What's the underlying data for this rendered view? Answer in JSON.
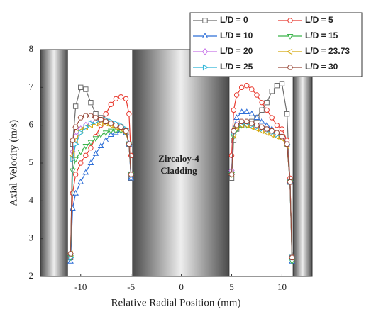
{
  "chart_data": {
    "type": "line",
    "xlabel": "Relative Radial Position (mm)",
    "ylabel": "Axial Velocity (m/s)",
    "annotation": [
      "Zircaloy-4",
      "Cladding"
    ],
    "xlim": [
      -14,
      13
    ],
    "ylim": [
      2,
      8
    ],
    "xticks": [
      -10,
      -5,
      0,
      5,
      10
    ],
    "yticks": [
      2,
      3,
      4,
      5,
      6,
      7,
      8
    ],
    "regions": [
      [
        -14,
        -11.3
      ],
      [
        -4.85,
        4.75
      ],
      [
        11.1,
        13
      ]
    ],
    "x": [
      -11,
      -10.8,
      -10.5,
      -10,
      -9.5,
      -9,
      -8.5,
      -8,
      -7.5,
      -7,
      -6.5,
      -6,
      -5.5,
      -5.2,
      -5,
      null,
      5,
      5.2,
      5.5,
      6,
      6.5,
      7,
      7.5,
      8,
      8.5,
      9,
      9.5,
      10,
      10.5,
      10.8,
      11
    ],
    "series": [
      {
        "name": "L/D = 0",
        "color": "#6e6e6e",
        "marker": "square",
        "values": [
          2.5,
          5.5,
          6.5,
          7.0,
          6.95,
          6.6,
          6.3,
          6.2,
          6.1,
          6.05,
          6.0,
          5.95,
          5.8,
          5.5,
          4.6,
          null,
          4.6,
          5.6,
          5.9,
          6.0,
          6.05,
          6.1,
          6.2,
          6.4,
          6.6,
          6.9,
          7.05,
          7.1,
          6.3,
          4.5,
          2.5
        ]
      },
      {
        "name": "L/D = 5",
        "color": "#e8382d",
        "marker": "circle",
        "values": [
          2.5,
          4.2,
          4.7,
          5.0,
          5.2,
          5.4,
          5.7,
          6.0,
          6.3,
          6.55,
          6.7,
          6.75,
          6.7,
          6.3,
          5.2,
          null,
          5.2,
          6.4,
          6.8,
          7.0,
          7.05,
          6.95,
          6.8,
          6.6,
          6.4,
          6.2,
          6.0,
          5.9,
          5.6,
          4.6,
          2.5
        ]
      },
      {
        "name": "L/D = 10",
        "color": "#2e6fd8",
        "marker": "triangle-up",
        "values": [
          2.4,
          3.8,
          4.2,
          4.5,
          4.75,
          5.0,
          5.25,
          5.45,
          5.6,
          5.75,
          5.8,
          5.85,
          5.8,
          5.5,
          4.6,
          null,
          4.8,
          5.9,
          6.2,
          6.35,
          6.35,
          6.3,
          6.2,
          6.1,
          6.0,
          5.9,
          5.8,
          5.7,
          5.5,
          4.5,
          2.4
        ]
      },
      {
        "name": "L/D = 15",
        "color": "#3cb44b",
        "marker": "triangle-down",
        "values": [
          2.5,
          4.8,
          5.1,
          5.3,
          5.45,
          5.55,
          5.65,
          5.75,
          5.8,
          5.85,
          5.85,
          5.85,
          5.8,
          5.5,
          4.7,
          null,
          4.7,
          5.7,
          5.9,
          6.0,
          6.0,
          6.0,
          5.95,
          5.9,
          5.85,
          5.8,
          5.75,
          5.7,
          5.5,
          4.5,
          2.4
        ]
      },
      {
        "name": "L/D = 20",
        "color": "#c774e8",
        "marker": "diamond",
        "values": [
          2.6,
          5.3,
          5.7,
          5.9,
          6.0,
          6.05,
          6.1,
          6.1,
          6.1,
          6.05,
          6.0,
          5.95,
          5.85,
          5.5,
          4.7,
          null,
          4.8,
          5.8,
          6.0,
          6.05,
          6.05,
          6.0,
          5.95,
          5.9,
          5.85,
          5.8,
          5.75,
          5.7,
          5.5,
          4.5,
          2.5
        ]
      },
      {
        "name": "L/D = 23.73",
        "color": "#d4a80c",
        "marker": "triangle-left",
        "values": [
          2.6,
          5.2,
          5.6,
          5.85,
          5.95,
          6.0,
          6.05,
          6.05,
          6.05,
          6.0,
          5.95,
          5.9,
          5.8,
          5.5,
          4.7,
          null,
          4.7,
          5.75,
          5.95,
          6.0,
          6.0,
          5.95,
          5.9,
          5.85,
          5.8,
          5.75,
          5.7,
          5.65,
          5.45,
          4.5,
          2.5
        ]
      },
      {
        "name": "L/D = 25",
        "color": "#2bb5d8",
        "marker": "triangle-right",
        "values": [
          2.5,
          5.1,
          5.5,
          5.8,
          5.95,
          6.05,
          6.1,
          6.15,
          6.15,
          6.1,
          6.05,
          6.0,
          5.9,
          5.5,
          4.7,
          null,
          4.7,
          5.8,
          6.0,
          6.05,
          6.05,
          6.0,
          5.95,
          5.9,
          5.85,
          5.8,
          5.75,
          5.7,
          5.5,
          4.5,
          2.5
        ]
      },
      {
        "name": "L/D = 30",
        "color": "#9a4a3a",
        "marker": "hexagon",
        "values": [
          2.6,
          5.6,
          5.95,
          6.2,
          6.25,
          6.25,
          6.2,
          6.15,
          6.1,
          6.05,
          6.0,
          5.95,
          5.85,
          5.5,
          4.7,
          null,
          4.7,
          5.85,
          6.0,
          6.1,
          6.1,
          6.05,
          6.0,
          5.95,
          5.9,
          5.85,
          5.8,
          5.7,
          5.5,
          4.5,
          2.5
        ]
      }
    ]
  }
}
